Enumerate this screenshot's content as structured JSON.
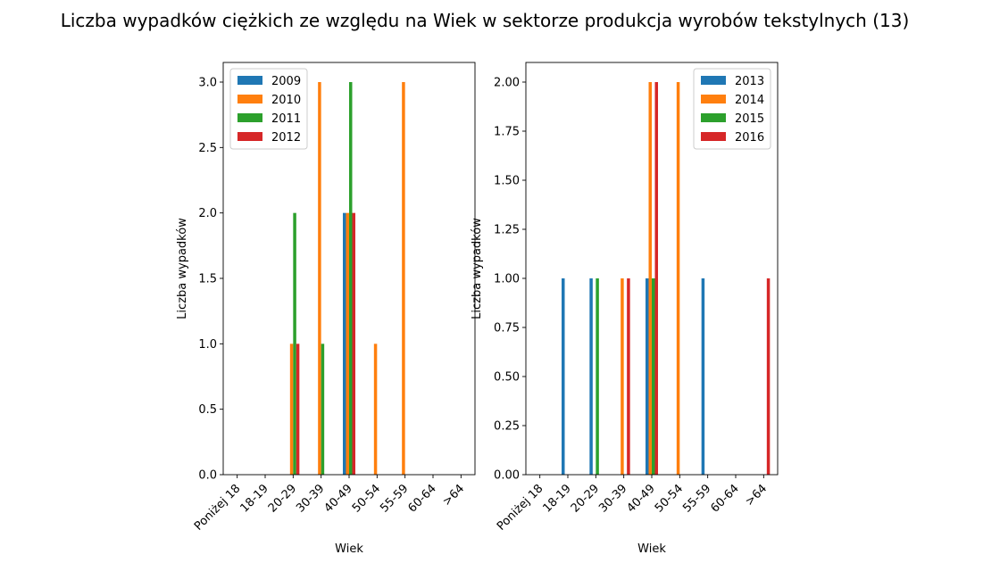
{
  "title": "Liczba wypadków ciężkich ze względu na Wiek w sektorze produkcja wyrobów tekstylnych  (13)",
  "chart_data": [
    {
      "type": "bar",
      "xlabel": "Wiek",
      "ylabel": "Liczba wypadków",
      "categories": [
        "Poniżej 18",
        "18-19",
        "20-29",
        "30-39",
        "40-49",
        "50-54",
        "55-59",
        "60-64",
        ">64"
      ],
      "ylim": [
        0,
        3.15
      ],
      "yticks": [
        0.0,
        0.5,
        1.0,
        1.5,
        2.0,
        2.5,
        3.0
      ],
      "ytick_labels": [
        "0.0",
        "0.5",
        "1.0",
        "1.5",
        "2.0",
        "2.5",
        "3.0"
      ],
      "legend_position": "top-left",
      "series": [
        {
          "name": "2009",
          "color": "#1f77b4",
          "values": [
            0,
            0,
            0,
            0,
            2,
            0,
            0,
            0,
            0
          ]
        },
        {
          "name": "2010",
          "color": "#ff7f0e",
          "values": [
            0,
            0,
            1,
            3,
            2,
            1,
            3,
            0,
            0
          ]
        },
        {
          "name": "2011",
          "color": "#2ca02c",
          "values": [
            0,
            0,
            2,
            1,
            3,
            0,
            0,
            0,
            0
          ]
        },
        {
          "name": "2012",
          "color": "#d62728",
          "values": [
            0,
            0,
            1,
            0,
            2,
            0,
            0,
            0,
            0
          ]
        }
      ]
    },
    {
      "type": "bar",
      "xlabel": "Wiek",
      "ylabel": "Liczba wypadków",
      "categories": [
        "Poniżej 18",
        "18-19",
        "20-29",
        "30-39",
        "40-49",
        "50-54",
        "55-59",
        "60-64",
        ">64"
      ],
      "ylim": [
        0,
        2.1
      ],
      "yticks": [
        0.0,
        0.25,
        0.5,
        0.75,
        1.0,
        1.25,
        1.5,
        1.75,
        2.0
      ],
      "ytick_labels": [
        "0.00",
        "0.25",
        "0.50",
        "0.75",
        "1.00",
        "1.25",
        "1.50",
        "1.75",
        "2.00"
      ],
      "legend_position": "top-right",
      "series": [
        {
          "name": "2013",
          "color": "#1f77b4",
          "values": [
            0,
            1,
            1,
            0,
            1,
            0,
            1,
            0,
            0
          ]
        },
        {
          "name": "2014",
          "color": "#ff7f0e",
          "values": [
            0,
            0,
            0,
            1,
            2,
            2,
            0,
            0,
            0
          ]
        },
        {
          "name": "2015",
          "color": "#2ca02c",
          "values": [
            0,
            0,
            1,
            0,
            1,
            0,
            0,
            0,
            0
          ]
        },
        {
          "name": "2016",
          "color": "#d62728",
          "values": [
            0,
            0,
            0,
            1,
            2,
            0,
            0,
            0,
            1
          ]
        }
      ]
    }
  ]
}
